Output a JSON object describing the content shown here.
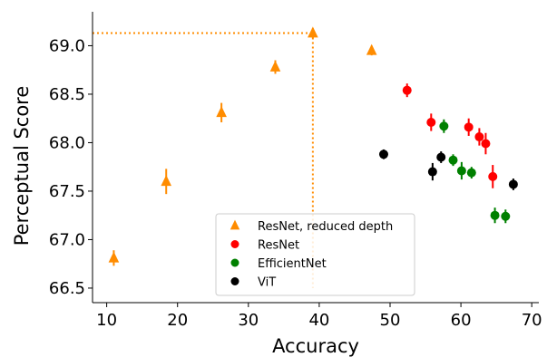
{
  "chart_data": {
    "type": "scatter",
    "title": "",
    "xlabel": "Accuracy",
    "ylabel": "Perceptual Score",
    "xlim": [
      8,
      71
    ],
    "ylim": [
      66.35,
      69.35
    ],
    "xticks": [
      10,
      20,
      30,
      40,
      50,
      60,
      70
    ],
    "yticks": [
      66.5,
      67.0,
      67.5,
      68.0,
      68.5,
      69.0
    ],
    "ytick_labels": [
      "66.5",
      "67.0",
      "67.5",
      "68.0",
      "68.5",
      "69.0"
    ],
    "grid": false,
    "legend_position": "lower-center",
    "reference_point": {
      "x": 39.1,
      "y": 69.13,
      "style": "dotted",
      "color": "#ff8c00"
    },
    "series": [
      {
        "name": "ResNet, reduced depth",
        "marker": "triangle",
        "color": "#ff8c00",
        "points": [
          {
            "x": 11.0,
            "y": 66.81,
            "err": 0.08
          },
          {
            "x": 18.4,
            "y": 67.6,
            "err": 0.13
          },
          {
            "x": 26.2,
            "y": 68.31,
            "err": 0.1
          },
          {
            "x": 33.8,
            "y": 68.78,
            "err": 0.07
          },
          {
            "x": 39.1,
            "y": 69.13,
            "err": 0.05
          },
          {
            "x": 47.4,
            "y": 68.95,
            "err": 0.05
          }
        ]
      },
      {
        "name": "ResNet",
        "marker": "circle",
        "color": "#ff0000",
        "points": [
          {
            "x": 52.4,
            "y": 68.54,
            "err": 0.07
          },
          {
            "x": 55.8,
            "y": 68.21,
            "err": 0.09
          },
          {
            "x": 61.1,
            "y": 68.16,
            "err": 0.09
          },
          {
            "x": 62.6,
            "y": 68.06,
            "err": 0.09
          },
          {
            "x": 63.5,
            "y": 67.99,
            "err": 0.11
          },
          {
            "x": 64.5,
            "y": 67.65,
            "err": 0.12
          }
        ]
      },
      {
        "name": "EfficientNet",
        "marker": "circle",
        "color": "#008000",
        "points": [
          {
            "x": 57.6,
            "y": 68.17,
            "err": 0.07
          },
          {
            "x": 58.9,
            "y": 67.82,
            "err": 0.06
          },
          {
            "x": 60.1,
            "y": 67.71,
            "err": 0.09
          },
          {
            "x": 61.5,
            "y": 67.69,
            "err": 0.06
          },
          {
            "x": 64.8,
            "y": 67.25,
            "err": 0.08
          },
          {
            "x": 66.3,
            "y": 67.24,
            "err": 0.07
          }
        ]
      },
      {
        "name": "ViT",
        "marker": "circle",
        "color": "#000000",
        "points": [
          {
            "x": 49.1,
            "y": 67.88,
            "err": 0.05
          },
          {
            "x": 56.0,
            "y": 67.7,
            "err": 0.09
          },
          {
            "x": 57.2,
            "y": 67.85,
            "err": 0.06
          },
          {
            "x": 67.4,
            "y": 67.57,
            "err": 0.06
          }
        ]
      }
    ]
  }
}
